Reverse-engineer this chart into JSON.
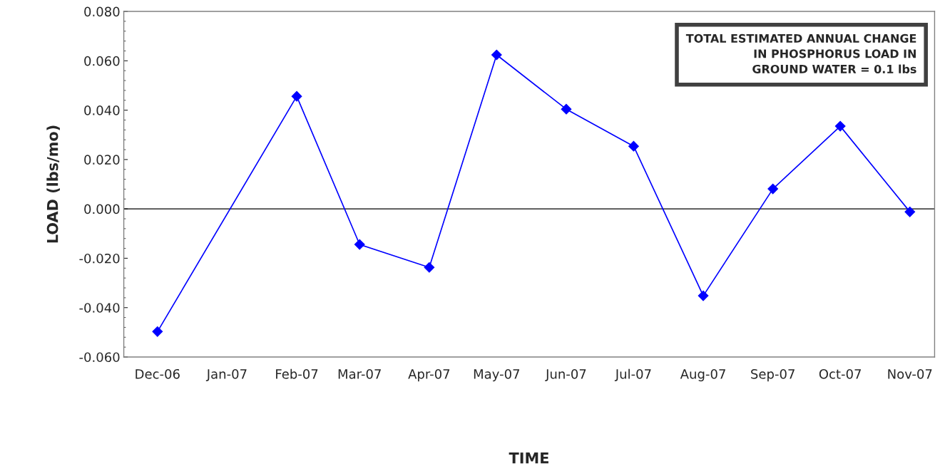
{
  "chart_data": {
    "type": "line",
    "xlabel": "TIME",
    "ylabel": "LOAD (lbs/mo)",
    "x": [
      "2006-12-01",
      "2007-02-01",
      "2007-03-01",
      "2007-04-01",
      "2007-05-01",
      "2007-06-01",
      "2007-07-01",
      "2007-08-01",
      "2007-09-01",
      "2007-10-01",
      "2007-11-01"
    ],
    "series": [
      {
        "color": "#0000ff",
        "values": [
          -0.0497,
          0.0456,
          -0.0144,
          -0.0237,
          0.0624,
          0.0404,
          0.0254,
          -0.0352,
          0.0081,
          0.0335,
          -0.0012
        ]
      }
    ],
    "marker": "diamond",
    "line_style": "solid",
    "grid": false,
    "legend": false,
    "xlim": [
      "2006-11-16",
      "2007-11-12"
    ],
    "xticks": [
      {
        "value": "2006-12-01",
        "label": "Dec-06"
      },
      {
        "value": "2007-01-01",
        "label": "Jan-07"
      },
      {
        "value": "2007-02-01",
        "label": "Feb-07"
      },
      {
        "value": "2007-03-01",
        "label": "Mar-07"
      },
      {
        "value": "2007-04-01",
        "label": "Apr-07"
      },
      {
        "value": "2007-05-01",
        "label": "May-07"
      },
      {
        "value": "2007-06-01",
        "label": "Jun-07"
      },
      {
        "value": "2007-07-01",
        "label": "Jul-07"
      },
      {
        "value": "2007-08-01",
        "label": "Aug-07"
      },
      {
        "value": "2007-09-01",
        "label": "Sep-07"
      },
      {
        "value": "2007-10-01",
        "label": "Oct-07"
      },
      {
        "value": "2007-11-01",
        "label": "Nov-07"
      }
    ],
    "ylim": [
      -0.06,
      0.08
    ],
    "yticks": [
      {
        "value": -0.06,
        "label": "-0.060"
      },
      {
        "value": -0.04,
        "label": "-0.040"
      },
      {
        "value": -0.02,
        "label": "-0.020"
      },
      {
        "value": 0,
        "label": "0.000"
      },
      {
        "value": 0.02,
        "label": "0.020"
      },
      {
        "value": 0.04,
        "label": "0.040"
      },
      {
        "value": 0.06,
        "label": "0.060"
      },
      {
        "value": 0.08,
        "label": "0.080"
      }
    ],
    "ref_lines": [
      {
        "axis": "y",
        "value": 0,
        "color": "#000000"
      }
    ],
    "annotations": [
      "TOTAL ESTIMATED ANNUAL CHANGE\nIN PHOSPHORUS LOAD IN\nGROUND WATER = 0.1 lbs"
    ]
  }
}
